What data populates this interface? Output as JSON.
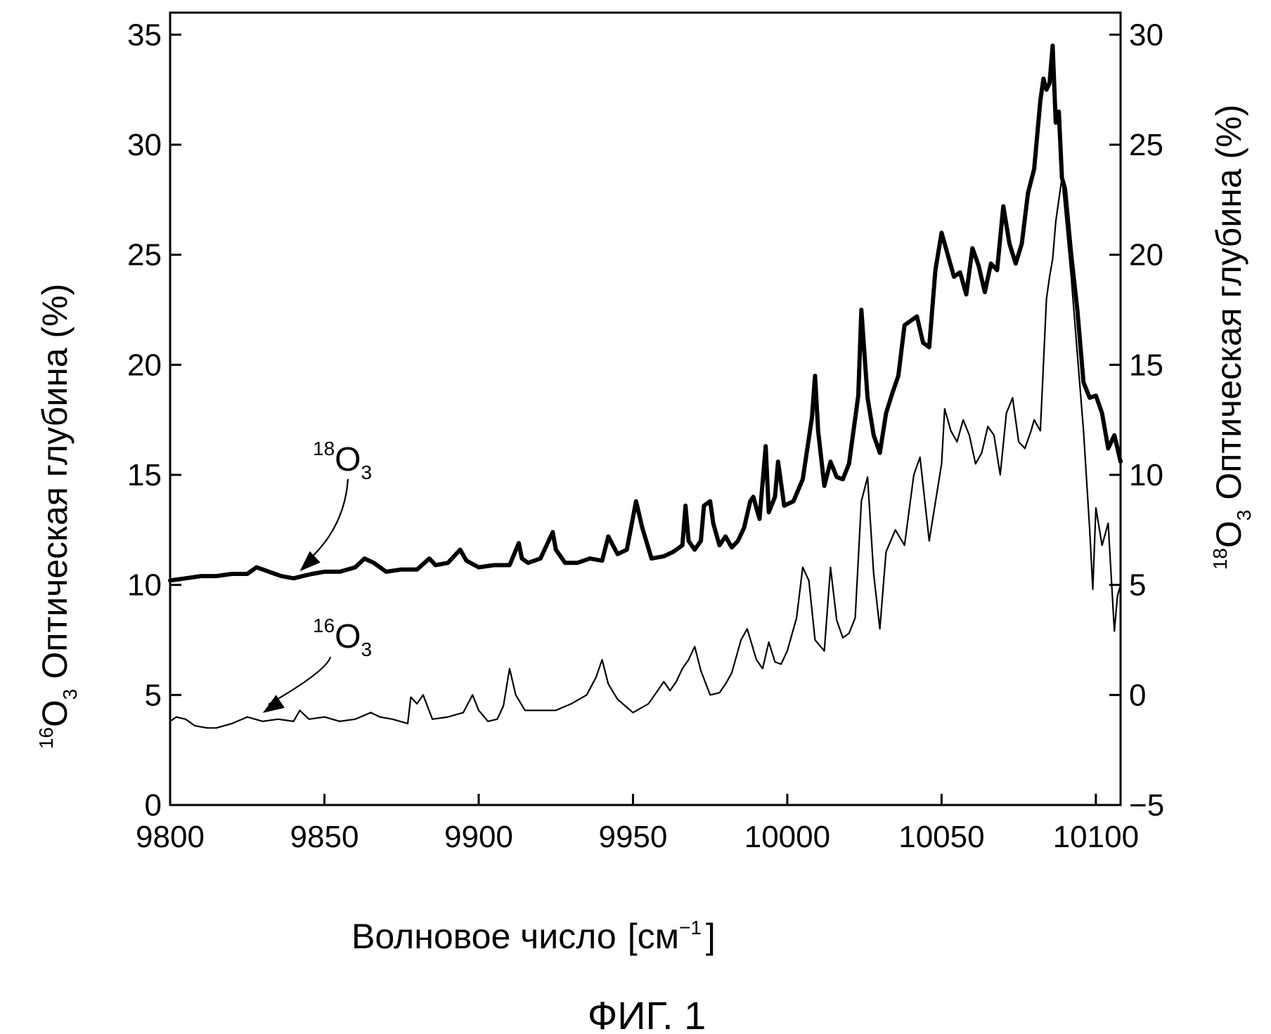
{
  "chart_data": {
    "type": "line",
    "caption": "ФИГ. 1",
    "xlabel": {
      "text": "Волновое число",
      "unit_open": "[см",
      "unit_sup": "−1",
      "unit_close": "]"
    },
    "ylabel_left": {
      "sup": "16",
      "base": "O",
      "sub": "3",
      "text": "Оптическая глубина (%)"
    },
    "ylabel_right": {
      "sup": "18",
      "base": "O",
      "sub": "3",
      "text": "Оптическая глубина (%)"
    },
    "xlim": [
      9800,
      10108
    ],
    "xticks": [
      "9800",
      "9850",
      "9900",
      "9950",
      "10000",
      "10050",
      "10100"
    ],
    "ylim_left": [
      0,
      36
    ],
    "yticks_left": [
      "0",
      "5",
      "10",
      "15",
      "20",
      "25",
      "30",
      "35"
    ],
    "ylim_right": [
      -5,
      31
    ],
    "yticks_right": [
      "−5",
      "0",
      "5",
      "10",
      "15",
      "20",
      "25",
      "30"
    ],
    "grid": false,
    "series": [
      {
        "name": "18O3",
        "label_sup": "18",
        "label_base": "O",
        "label_sub": "3",
        "axis": "right",
        "stroke": "#000000",
        "x": [
          9800,
          9805,
          9810,
          9815,
          9820,
          9825,
          9828,
          9832,
          9836,
          9840,
          9843,
          9846,
          9850,
          9855,
          9860,
          9863,
          9866,
          9870,
          9875,
          9880,
          9884,
          9886,
          9890,
          9894,
          9896,
          9900,
          9905,
          9910,
          9913,
          9914,
          9916,
          9920,
          9924,
          9925,
          9928,
          9932,
          9936,
          9940,
          9942,
          9945,
          9948,
          9951,
          9953,
          9956,
          9960,
          9963,
          9966,
          9967,
          9968,
          9970,
          9972,
          9973,
          9975,
          9976,
          9978,
          9980,
          9982,
          9984,
          9986,
          9988,
          9989,
          9991,
          9993,
          9994,
          9996,
          9997,
          9999,
          10002,
          10005,
          10008,
          10009,
          10010,
          10012,
          10014,
          10016,
          10018,
          10020,
          10023,
          10024,
          10026,
          10028,
          10030,
          10032,
          10034,
          10036,
          10038,
          10040,
          10042,
          10044,
          10046,
          10048,
          10050,
          10052,
          10054,
          10056,
          10058,
          10060,
          10062,
          10064,
          10066,
          10068,
          10070,
          10072,
          10074,
          10076,
          10078,
          10080,
          10082,
          10083,
          10084,
          10085,
          10086,
          10087,
          10088,
          10089,
          10090,
          10092,
          10094,
          10096,
          10098,
          10100,
          10102,
          10104,
          10106,
          10108
        ],
        "y": [
          5.2,
          5.3,
          5.4,
          5.4,
          5.5,
          5.5,
          5.8,
          5.6,
          5.4,
          5.3,
          5.4,
          5.5,
          5.6,
          5.6,
          5.8,
          6.2,
          6.0,
          5.6,
          5.7,
          5.7,
          6.2,
          5.9,
          6.0,
          6.6,
          6.1,
          5.8,
          5.9,
          5.9,
          6.9,
          6.2,
          6.0,
          6.2,
          7.4,
          6.6,
          6.0,
          6.0,
          6.2,
          6.1,
          7.2,
          6.4,
          6.6,
          8.8,
          7.6,
          6.2,
          6.3,
          6.5,
          6.8,
          8.6,
          7.0,
          6.6,
          7.0,
          8.6,
          8.8,
          7.8,
          6.8,
          7.2,
          6.7,
          7.0,
          7.6,
          8.8,
          9.0,
          8.0,
          11.3,
          8.3,
          9.0,
          10.6,
          8.6,
          8.8,
          9.8,
          12.6,
          14.5,
          12.0,
          9.5,
          10.6,
          9.9,
          9.8,
          10.5,
          13.6,
          17.5,
          13.5,
          11.8,
          11.0,
          12.8,
          13.7,
          14.5,
          16.8,
          17.0,
          17.2,
          16.0,
          15.8,
          19.3,
          21.0,
          20.0,
          19.0,
          19.2,
          18.2,
          20.3,
          19.5,
          18.3,
          19.6,
          19.3,
          22.2,
          20.5,
          19.6,
          20.5,
          22.8,
          23.9,
          27.0,
          28.0,
          27.5,
          27.8,
          29.5,
          26.0,
          26.5,
          23.5,
          23.0,
          20.0,
          17.5,
          14.2,
          13.5,
          13.6,
          12.8,
          11.2,
          11.8,
          10.6
        ]
      },
      {
        "name": "16O3",
        "label_sup": "16",
        "label_base": "O",
        "label_sub": "3",
        "axis": "left",
        "stroke": "#000000",
        "x": [
          9800,
          9802,
          9805,
          9808,
          9812,
          9815,
          9820,
          9825,
          9830,
          9835,
          9840,
          9842,
          9845,
          9850,
          9855,
          9860,
          9865,
          9868,
          9872,
          9877,
          9878,
          9880,
          9882,
          9885,
          9890,
          9895,
          9898,
          9900,
          9903,
          9906,
          9908,
          9910,
          9912,
          9915,
          9920,
          9925,
          9930,
          9935,
          9938,
          9940,
          9942,
          9945,
          9950,
          9955,
          9958,
          9960,
          9962,
          9964,
          9966,
          9968,
          9970,
          9972,
          9975,
          9978,
          9980,
          9982,
          9985,
          9987,
          9990,
          9992,
          9994,
          9996,
          9998,
          10000,
          10003,
          10005,
          10007,
          10009,
          10012,
          10014,
          10016,
          10018,
          10020,
          10022,
          10024,
          10026,
          10028,
          10030,
          10032,
          10035,
          10038,
          10041,
          10043,
          10046,
          10050,
          10051,
          10053,
          10055,
          10057,
          10059,
          10061,
          10063,
          10065,
          10067,
          10069,
          10071,
          10073,
          10075,
          10077,
          10079,
          10080,
          10082,
          10084,
          10085,
          10086,
          10087,
          10088,
          10089,
          10090,
          10092,
          10094,
          10096,
          10098,
          10099,
          10100,
          10102,
          10104,
          10106,
          10107,
          10108
        ],
        "y": [
          3.8,
          4.0,
          3.9,
          3.6,
          3.5,
          3.5,
          3.7,
          4.0,
          3.8,
          3.9,
          3.8,
          4.3,
          3.9,
          4.0,
          3.8,
          3.9,
          4.2,
          4.0,
          3.9,
          3.7,
          4.9,
          4.6,
          5.0,
          3.9,
          4.0,
          4.2,
          5.0,
          4.3,
          3.8,
          3.9,
          4.5,
          6.2,
          5.0,
          4.3,
          4.3,
          4.3,
          4.6,
          5.0,
          5.8,
          6.6,
          5.5,
          4.8,
          4.2,
          4.6,
          5.2,
          5.6,
          5.2,
          5.6,
          6.2,
          6.6,
          7.2,
          6.1,
          5.0,
          5.1,
          5.5,
          6.0,
          7.5,
          8.0,
          6.6,
          6.2,
          7.4,
          6.5,
          6.4,
          7.0,
          8.5,
          10.8,
          10.2,
          7.5,
          7.0,
          10.8,
          8.4,
          7.6,
          7.8,
          8.5,
          13.8,
          14.9,
          10.5,
          8.0,
          11.5,
          12.5,
          11.8,
          15.0,
          15.8,
          12.0,
          15.5,
          18.0,
          17.0,
          16.5,
          17.5,
          16.8,
          15.5,
          16.0,
          17.2,
          16.8,
          15.0,
          17.8,
          18.5,
          16.5,
          16.2,
          17.0,
          17.5,
          17.0,
          23.0,
          24.0,
          24.8,
          26.5,
          27.5,
          28.5,
          27.0,
          24.0,
          20.5,
          17.0,
          12.5,
          9.8,
          13.5,
          11.8,
          12.8,
          7.9,
          9.5,
          10.0
        ]
      }
    ]
  }
}
